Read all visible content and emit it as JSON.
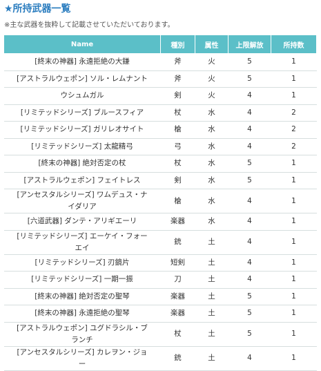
{
  "header": {
    "title": "★所持武器一覧",
    "note": "※主な武器を抜粋して記載させていただいております。"
  },
  "table": {
    "columns": [
      "Name",
      "種別",
      "属性",
      "上限解放",
      "所持数"
    ],
    "rows": [
      [
        "[終末の神器] 永遠拒絶の大鎌",
        "斧",
        "火",
        5,
        1
      ],
      [
        "[アストラルウェポン] ソル・レムナント",
        "斧",
        "火",
        5,
        1
      ],
      [
        "ウシュムガル",
        "剣",
        "火",
        4,
        1
      ],
      [
        "[リミテッドシリーズ] ブルースフィア",
        "杖",
        "水",
        4,
        2
      ],
      [
        "[リミテッドシリーズ] ガリレオサイト",
        "槍",
        "水",
        4,
        2
      ],
      [
        "[リミテッドシリーズ] 太龍精弓",
        "弓",
        "水",
        4,
        2
      ],
      [
        "[終末の神器] 絶対否定の杖",
        "杖",
        "水",
        5,
        1
      ],
      [
        "[アストラルウェポン] フェイトレス",
        "剣",
        "水",
        5,
        1
      ],
      [
        "[アンセスタルシリーズ] ワムデュス・ナイダリア",
        "槍",
        "水",
        4,
        1
      ],
      [
        "[六道武器] ダンテ・アリギエーリ",
        "楽器",
        "水",
        4,
        1
      ],
      [
        "[リミテッドシリーズ] エーケイ・フォーエイ",
        "銃",
        "土",
        4,
        1
      ],
      [
        "[リミテッドシリーズ] 刃鏡片",
        "短剣",
        "土",
        4,
        1
      ],
      [
        "[リミテッドシリーズ] 一期一振",
        "刀",
        "土",
        4,
        1
      ],
      [
        "[終末の神器] 絶対否定の聖琴",
        "楽器",
        "土",
        5,
        1
      ],
      [
        "[終末の神器] 永遠拒絶の聖琴",
        "楽器",
        "土",
        5,
        1
      ],
      [
        "[アストラルウェポン] ユグドラシル・ブランチ",
        "杖",
        "土",
        5,
        1
      ],
      [
        "[アンセスタルシリーズ] カレヲン・ジョー",
        "銃",
        "土",
        4,
        1
      ]
    ]
  }
}
